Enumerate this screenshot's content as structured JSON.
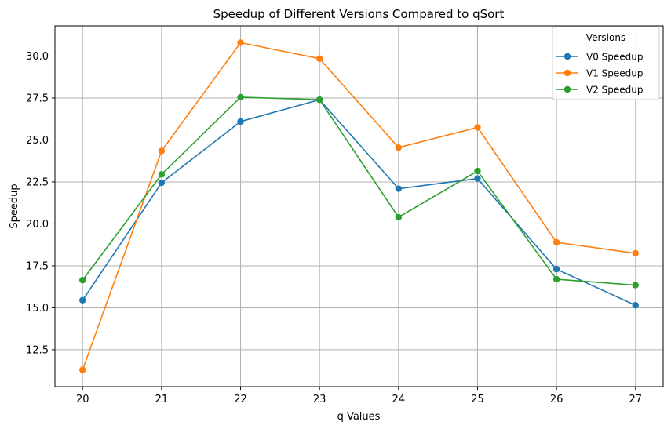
{
  "chart_data": {
    "type": "line",
    "title": "Speedup of Different Versions Compared to qSort",
    "xlabel": "q Values",
    "ylabel": "Speedup",
    "x": [
      20,
      21,
      22,
      23,
      24,
      25,
      26,
      27
    ],
    "xlim": [
      19.65,
      27.35
    ],
    "ylim": [
      10.3,
      31.8
    ],
    "x_ticks": [
      "20",
      "21",
      "22",
      "23",
      "24",
      "25",
      "26",
      "27"
    ],
    "y_ticks": [
      "12.5",
      "15.0",
      "17.5",
      "20.0",
      "22.5",
      "25.0",
      "27.5",
      "30.0"
    ],
    "grid": true,
    "legend": {
      "title": "Versions",
      "position": "top-right"
    },
    "series": [
      {
        "name": "V0 Speedup",
        "color": "#1f77b4",
        "values": [
          15.45,
          22.45,
          26.1,
          27.4,
          22.1,
          22.7,
          17.3,
          15.15
        ]
      },
      {
        "name": "V1 Speedup",
        "color": "#ff7f0e",
        "values": [
          11.3,
          24.35,
          30.8,
          29.85,
          24.55,
          25.75,
          18.9,
          18.25
        ]
      },
      {
        "name": "V2 Speedup",
        "color": "#2ca02c",
        "values": [
          16.65,
          22.95,
          27.55,
          27.4,
          20.4,
          23.15,
          16.7,
          16.35
        ]
      }
    ]
  }
}
